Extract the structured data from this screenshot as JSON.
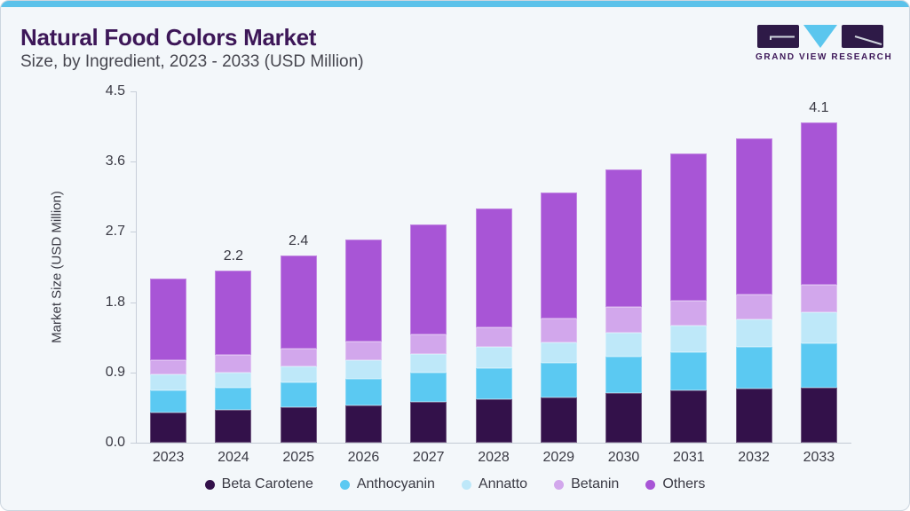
{
  "page": {
    "title": "Natural Food Colors Market",
    "subtitle": "Size, by Ingredient, 2023 - 2033 (USD Million)",
    "accent_color": "#5bc2ea",
    "card_bg": "#f3f7fa"
  },
  "logo": {
    "name": "Grand View Research",
    "text": "GRAND VIEW RESEARCH",
    "dark_color": "#2e1a47",
    "accent_color": "#5bc6ee"
  },
  "chart_data": {
    "type": "bar",
    "stacked": true,
    "title": "Natural Food Colors Market Size, by Ingredient, 2023 - 2033 (USD Million)",
    "categories": [
      "2023",
      "2024",
      "2025",
      "2026",
      "2027",
      "2028",
      "2029",
      "2030",
      "2031",
      "2032",
      "2033"
    ],
    "series": [
      {
        "name": "Beta Carotene",
        "color": "#33114a",
        "values": [
          0.39,
          0.42,
          0.46,
          0.48,
          0.52,
          0.56,
          0.58,
          0.64,
          0.67,
          0.69,
          0.71
        ]
      },
      {
        "name": "Anthocyanin",
        "color": "#5bc9f2",
        "values": [
          0.28,
          0.28,
          0.31,
          0.34,
          0.38,
          0.4,
          0.44,
          0.46,
          0.49,
          0.54,
          0.56
        ]
      },
      {
        "name": "Annatto",
        "color": "#bee8f9",
        "values": [
          0.21,
          0.2,
          0.21,
          0.24,
          0.24,
          0.27,
          0.27,
          0.31,
          0.34,
          0.35,
          0.4
        ]
      },
      {
        "name": "Betanin",
        "color": "#d2a7ec",
        "values": [
          0.18,
          0.22,
          0.22,
          0.24,
          0.25,
          0.25,
          0.3,
          0.33,
          0.32,
          0.32,
          0.35
        ]
      },
      {
        "name": "Others",
        "color": "#a855d6",
        "values": [
          1.04,
          1.08,
          1.2,
          1.3,
          1.41,
          1.52,
          1.61,
          1.76,
          1.88,
          2.0,
          2.08
        ]
      }
    ],
    "totals": [
      2.1,
      2.2,
      2.4,
      2.6,
      2.8,
      3.0,
      3.2,
      3.5,
      3.7,
      3.9,
      4.1
    ],
    "bar_value_labels": [
      null,
      "2.2",
      "2.4",
      null,
      null,
      null,
      null,
      null,
      null,
      null,
      "4.1"
    ],
    "xlabel": "",
    "ylabel": "Market Size (USD Million)",
    "yticks": [
      "0.0",
      "0.9",
      "1.8",
      "2.7",
      "3.6",
      "4.5"
    ],
    "ylim": [
      0,
      4.5
    ],
    "grid": false,
    "legend_position": "bottom"
  }
}
